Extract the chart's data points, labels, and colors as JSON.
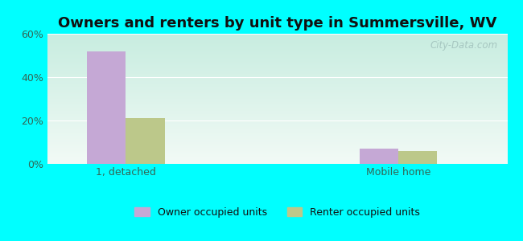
{
  "title": "Owners and renters by unit type in Summersville, WV",
  "categories": [
    "1, detached",
    "Mobile home"
  ],
  "owner_values": [
    52,
    7
  ],
  "renter_values": [
    21,
    6
  ],
  "owner_color": "#c5a8d5",
  "renter_color": "#bcc88a",
  "bar_width": 0.32,
  "ylim": [
    0,
    60
  ],
  "yticks": [
    0,
    20,
    40,
    60
  ],
  "ytick_labels": [
    "0%",
    "20%",
    "40%",
    "60%"
  ],
  "bg_top_left": "#c8ede0",
  "bg_top_right": "#d8eee8",
  "bg_bottom_left": "#e8f5ee",
  "bg_bottom_right": "#f0f8f4",
  "outer_bg": "#00ffff",
  "watermark": "City-Data.com",
  "legend_owner": "Owner occupied units",
  "legend_renter": "Renter occupied units",
  "title_fontsize": 13,
  "tick_fontsize": 9,
  "legend_fontsize": 9,
  "text_color": "#336655"
}
